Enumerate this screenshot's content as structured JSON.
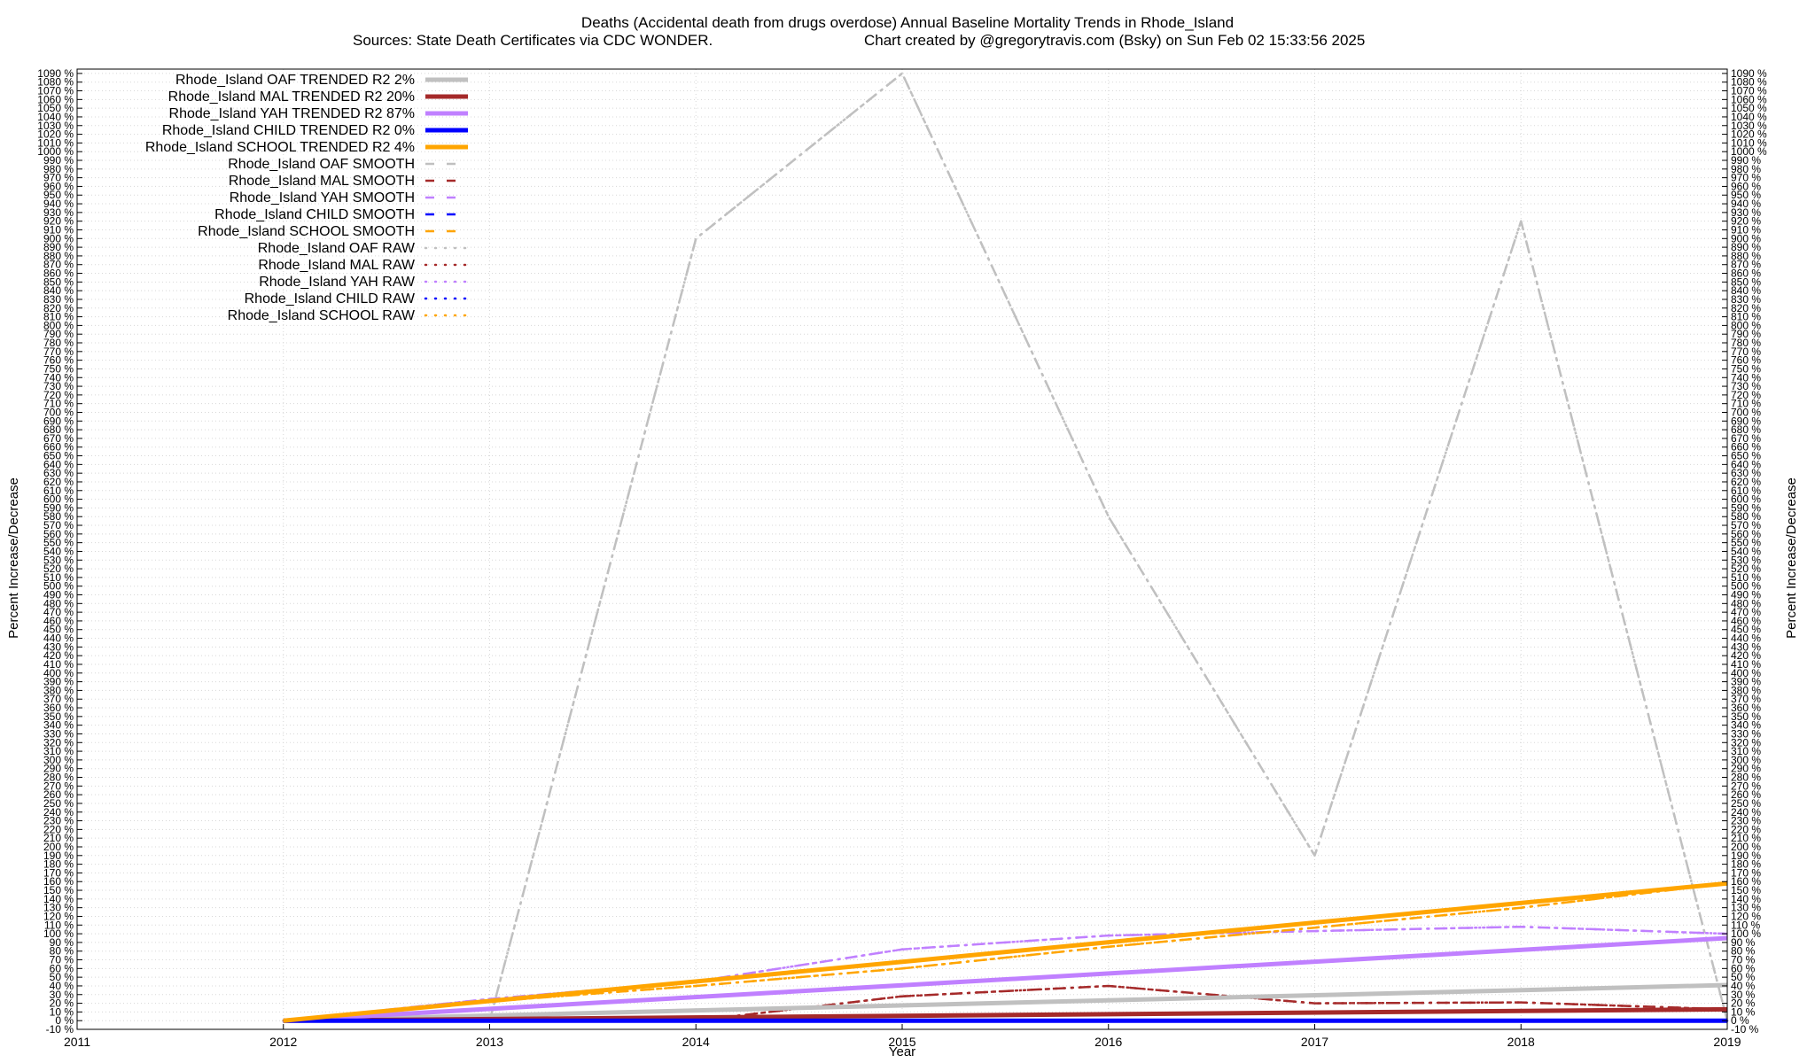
{
  "chart_data": {
    "type": "line",
    "title": "Deaths (Accidental death from drugs overdose)  Annual Baseline Mortality Trends in Rhode_Island",
    "subtitle_left": "Sources: State Death Certificates via CDC WONDER.",
    "subtitle_right": "Chart created by @gregorytravis.com (Bsky) on Sun Feb 02 15:33:56 2025",
    "xlabel": "Year",
    "ylabel": "Percent Increase/Decrease",
    "ylabel_right": "Percent Increase/Decrease",
    "xlim": [
      2011,
      2019
    ],
    "ylim": [
      -10,
      1095
    ],
    "x_ticks": [
      2011,
      2012,
      2013,
      2014,
      2015,
      2016,
      2017,
      2018,
      2019
    ],
    "y_tick_step": 10,
    "y_tick_suffix": " %",
    "grid": true,
    "legend_position": "top-left",
    "colors": {
      "oaf": "#c0c0c0",
      "mal": "#a52a2a",
      "yah": "#c080ff",
      "child": "#0000ff",
      "school": "#ffa500"
    },
    "series": [
      {
        "name": "Rhode_Island OAF TRENDED R2   2%",
        "style": "trend",
        "color": "#c0c0c0",
        "x": [
          2012,
          2019
        ],
        "y": [
          0,
          41
        ]
      },
      {
        "name": "Rhode_Island MAL TRENDED R2  20%",
        "style": "trend",
        "color": "#a52a2a",
        "x": [
          2012,
          2019
        ],
        "y": [
          0,
          13
        ]
      },
      {
        "name": "Rhode_Island YAH TRENDED R2  87%",
        "style": "trend",
        "color": "#c080ff",
        "x": [
          2012,
          2019
        ],
        "y": [
          0,
          95
        ]
      },
      {
        "name": "Rhode_Island CHILD TRENDED R2   0%",
        "style": "trend",
        "color": "#0000ff",
        "x": [
          2012,
          2019
        ],
        "y": [
          0,
          0
        ]
      },
      {
        "name": "Rhode_Island SCHOOL TRENDED R2   4%",
        "style": "trend",
        "color": "#ffa500",
        "x": [
          2012,
          2019
        ],
        "y": [
          0,
          158
        ]
      },
      {
        "name": "Rhode_Island OAF SMOOTH",
        "style": "smooth",
        "color": "#c0c0c0",
        "x": [
          2012,
          2013,
          2014,
          2015,
          2016,
          2017,
          2018,
          2019
        ],
        "y": [
          0,
          0,
          900,
          1090,
          580,
          190,
          920,
          0
        ]
      },
      {
        "name": "Rhode_Island MAL SMOOTH",
        "style": "smooth",
        "color": "#a52a2a",
        "x": [
          2012,
          2013,
          2014,
          2015,
          2016,
          2017,
          2018,
          2019
        ],
        "y": [
          0,
          5,
          0,
          28,
          40,
          20,
          21,
          13
        ]
      },
      {
        "name": "Rhode_Island YAH SMOOTH",
        "style": "smooth",
        "color": "#c080ff",
        "x": [
          2012,
          2013,
          2014,
          2015,
          2016,
          2017,
          2018,
          2019
        ],
        "y": [
          0,
          25,
          45,
          82,
          98,
          103,
          108,
          100
        ]
      },
      {
        "name": "Rhode_Island CHILD SMOOTH",
        "style": "smooth",
        "color": "#0000ff",
        "x": [
          2012,
          2013,
          2014,
          2015,
          2016,
          2017,
          2018,
          2019
        ],
        "y": [
          0,
          0,
          0,
          0,
          0,
          0,
          0,
          0
        ]
      },
      {
        "name": "Rhode_Island SCHOOL SMOOTH",
        "style": "smooth",
        "color": "#ffa500",
        "x": [
          2012,
          2013,
          2014,
          2015,
          2016,
          2017,
          2018,
          2019
        ],
        "y": [
          0,
          22,
          40,
          60,
          85,
          107,
          130,
          158
        ]
      },
      {
        "name": "Rhode_Island OAF RAW",
        "style": "raw",
        "color": "#c0c0c0",
        "x": [
          2012,
          2013,
          2014,
          2015,
          2016,
          2017,
          2018,
          2019
        ],
        "y": [
          0,
          0,
          900,
          1090,
          580,
          190,
          920,
          0
        ]
      },
      {
        "name": "Rhode_Island MAL RAW",
        "style": "raw",
        "color": "#a52a2a",
        "x": [
          2012,
          2013,
          2014,
          2015,
          2016,
          2017,
          2018,
          2019
        ],
        "y": [
          0,
          5,
          0,
          28,
          40,
          20,
          21,
          13
        ]
      },
      {
        "name": "Rhode_Island YAH RAW",
        "style": "raw",
        "color": "#c080ff",
        "x": [
          2012,
          2013,
          2014,
          2015,
          2016,
          2017,
          2018,
          2019
        ],
        "y": [
          0,
          25,
          45,
          82,
          98,
          103,
          108,
          100
        ]
      },
      {
        "name": "Rhode_Island CHILD RAW",
        "style": "raw",
        "color": "#0000ff",
        "x": [
          2012,
          2013,
          2014,
          2015,
          2016,
          2017,
          2018,
          2019
        ],
        "y": [
          0,
          0,
          0,
          0,
          0,
          0,
          0,
          0
        ]
      },
      {
        "name": "Rhode_Island SCHOOL RAW",
        "style": "raw",
        "color": "#ffa500",
        "x": [
          2012,
          2013,
          2014,
          2015,
          2016,
          2017,
          2018,
          2019
        ],
        "y": [
          0,
          22,
          40,
          60,
          85,
          107,
          130,
          158
        ]
      }
    ]
  }
}
